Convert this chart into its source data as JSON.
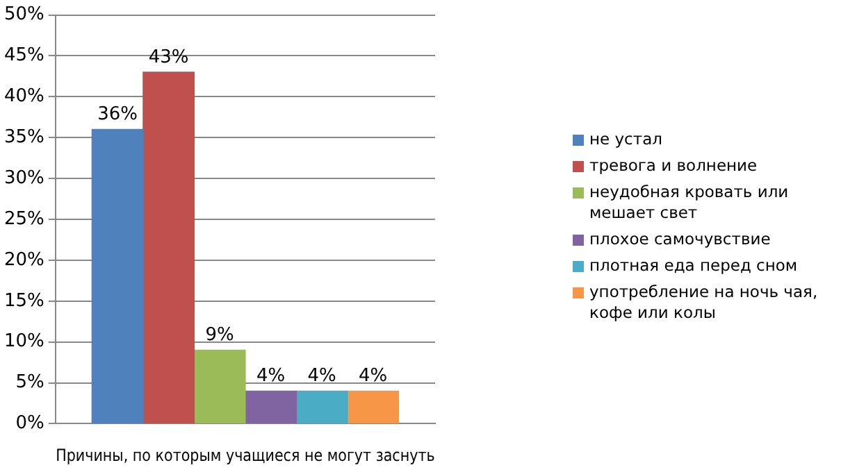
{
  "chart_data": {
    "type": "bar",
    "xlabel": "Причины, по которым учащиеся не могут заснуть",
    "categories": [
      null,
      null,
      null,
      null,
      null,
      null
    ],
    "series": [
      {
        "name": "не устал",
        "color": "#4f81bd",
        "values": [
          36,
          null,
          null,
          null,
          null,
          null
        ],
        "value_labels": [
          "36%",
          null,
          null,
          null,
          null,
          null
        ]
      },
      {
        "name": "тревога и волнение",
        "color": "#c0504d",
        "values": [
          null,
          43,
          null,
          null,
          null,
          null
        ],
        "value_labels": [
          null,
          "43%",
          null,
          null,
          null,
          null
        ]
      },
      {
        "name": "неудобная кровать или мешает свет",
        "color": "#9bbb59",
        "values": [
          null,
          null,
          9,
          null,
          null,
          null
        ],
        "value_labels": [
          null,
          null,
          "9%",
          null,
          null,
          null
        ]
      },
      {
        "name": "плохое самочувствие",
        "color": "#8064a2",
        "values": [
          null,
          null,
          null,
          4,
          null,
          null
        ],
        "value_labels": [
          null,
          null,
          null,
          "4%",
          null,
          null
        ]
      },
      {
        "name": "плотная еда перед сном",
        "color": "#4bacc6",
        "values": [
          null,
          null,
          null,
          null,
          4,
          null
        ],
        "value_labels": [
          null,
          null,
          null,
          null,
          "4%",
          null
        ]
      },
      {
        "name": "употребление на ночь чая, кофе или колы",
        "color": "#f79646",
        "values": [
          null,
          null,
          null,
          null,
          null,
          4
        ],
        "value_labels": [
          null,
          null,
          null,
          null,
          null,
          "4%"
        ]
      }
    ],
    "ylim": [
      0,
      50
    ],
    "yticks": [
      {
        "value": 0,
        "label": "0%"
      },
      {
        "value": 5,
        "label": "5%"
      },
      {
        "value": 10,
        "label": "10%"
      },
      {
        "value": 15,
        "label": "15%"
      },
      {
        "value": 20,
        "label": "20%"
      },
      {
        "value": 25,
        "label": "25%"
      },
      {
        "value": 30,
        "label": "30%"
      },
      {
        "value": 35,
        "label": "35%"
      },
      {
        "value": 40,
        "label": "40%"
      },
      {
        "value": 45,
        "label": "45%"
      },
      {
        "value": 50,
        "label": "50%"
      }
    ],
    "grid": "y",
    "legend": "right"
  }
}
